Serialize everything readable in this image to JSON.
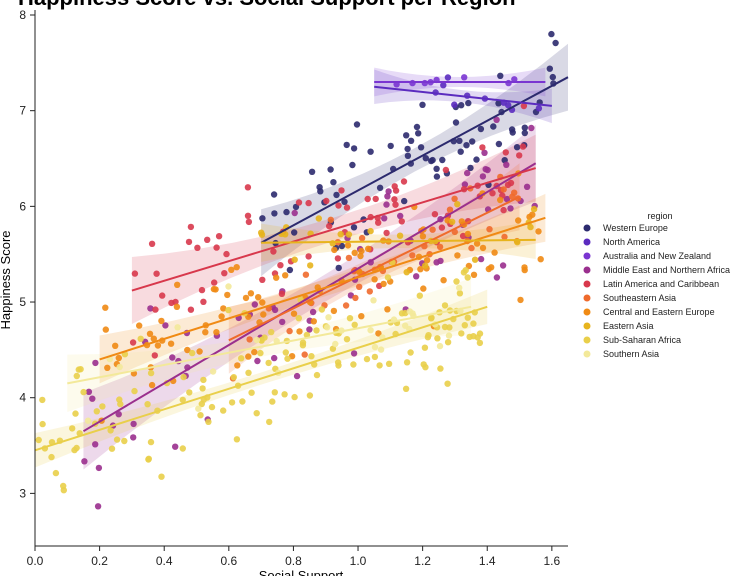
{
  "chart_data": {
    "type": "scatter",
    "title": "Happiness Score vs. Social Support per Region",
    "xlabel": "Social Support",
    "ylabel": "Happiness Score",
    "xlim": [
      0.0,
      1.65
    ],
    "ylim": [
      2.45,
      8.0
    ],
    "xticks": [
      0.0,
      0.2,
      0.4,
      0.6,
      0.8,
      1.0,
      1.2,
      1.4,
      1.6
    ],
    "xtick_labels": [
      "0.0",
      "0.2",
      "0.4",
      "0.6",
      "0.8",
      "1.0",
      "1.2",
      "1.4",
      "1.6"
    ],
    "yticks": [
      3,
      4,
      5,
      6,
      7,
      8
    ],
    "ytick_labels": [
      "3",
      "4",
      "5",
      "6",
      "7",
      "8"
    ],
    "grid": false,
    "legend": {
      "title": "region",
      "placement": "right"
    },
    "series": [
      {
        "name": "Western Europe",
        "color": "#2c2a6e",
        "fit": [
          [
            0.7,
            5.62
          ],
          [
            1.65,
            7.35
          ]
        ],
        "band": 0.35,
        "n": 80,
        "x_range": [
          0.7,
          1.62
        ],
        "y_center": 6.9,
        "y_spread": 0.55
      },
      {
        "name": "North America",
        "color": "#5b2bbf",
        "fit": [
          [
            1.05,
            7.25
          ],
          [
            1.6,
            7.05
          ]
        ],
        "band": 0.18,
        "n": 10,
        "x_range": [
          1.05,
          1.58
        ],
        "y_center": 7.15,
        "y_spread": 0.15
      },
      {
        "name": "Australia and New Zealand",
        "color": "#7a35d1",
        "fit": [
          [
            1.05,
            7.3
          ],
          [
            1.58,
            7.3
          ]
        ],
        "band": 0.15,
        "n": 8,
        "x_range": [
          1.1,
          1.58
        ],
        "y_center": 7.3,
        "y_spread": 0.05
      },
      {
        "name": "Middle East and Northern Africa",
        "color": "#9a2f8e",
        "fit": [
          [
            0.15,
            3.65
          ],
          [
            1.55,
            6.45
          ]
        ],
        "band": 0.4,
        "n": 75,
        "x_range": [
          0.15,
          1.55
        ],
        "y_center": 5.2,
        "y_spread": 0.75
      },
      {
        "name": "Latin America and Caribbean",
        "color": "#d8384c",
        "fit": [
          [
            0.3,
            5.12
          ],
          [
            1.55,
            6.4
          ]
        ],
        "band": 0.35,
        "n": 80,
        "x_range": [
          0.3,
          1.55
        ],
        "y_center": 6.0,
        "y_spread": 0.6
      },
      {
        "name": "Southeastern Asia",
        "color": "#ef6a2c",
        "fit": [
          [
            0.6,
            4.6
          ],
          [
            1.5,
            6.1
          ]
        ],
        "band": 0.35,
        "n": 40,
        "x_range": [
          0.6,
          1.5
        ],
        "y_center": 5.4,
        "y_spread": 0.5
      },
      {
        "name": "Central and Eastern Europe",
        "color": "#f08a14",
        "fit": [
          [
            0.2,
            4.4
          ],
          [
            1.58,
            5.88
          ]
        ],
        "band": 0.25,
        "n": 110,
        "x_range": [
          0.2,
          1.58
        ],
        "y_center": 5.4,
        "y_spread": 0.55
      },
      {
        "name": "Eastern Asia",
        "color": "#e7b41d",
        "fit": [
          [
            0.7,
            5.62
          ],
          [
            1.55,
            5.65
          ]
        ],
        "band": 0.2,
        "n": 25,
        "x_range": [
          0.7,
          1.55
        ],
        "y_center": 5.65,
        "y_spread": 0.35
      },
      {
        "name": "Sub-Saharan Africa",
        "color": "#e9cf4a",
        "fit": [
          [
            0.0,
            3.45
          ],
          [
            1.4,
            4.95
          ]
        ],
        "band": 0.18,
        "n": 150,
        "x_range": [
          0.0,
          1.4
        ],
        "y_center": 4.25,
        "y_spread": 0.6
      },
      {
        "name": "Southern Asia",
        "color": "#f3e99a",
        "fit": [
          [
            0.1,
            4.15
          ],
          [
            1.35,
            4.95
          ]
        ],
        "band": 0.3,
        "n": 30,
        "x_range": [
          0.1,
          1.35
        ],
        "y_center": 4.5,
        "y_spread": 0.5
      }
    ]
  }
}
